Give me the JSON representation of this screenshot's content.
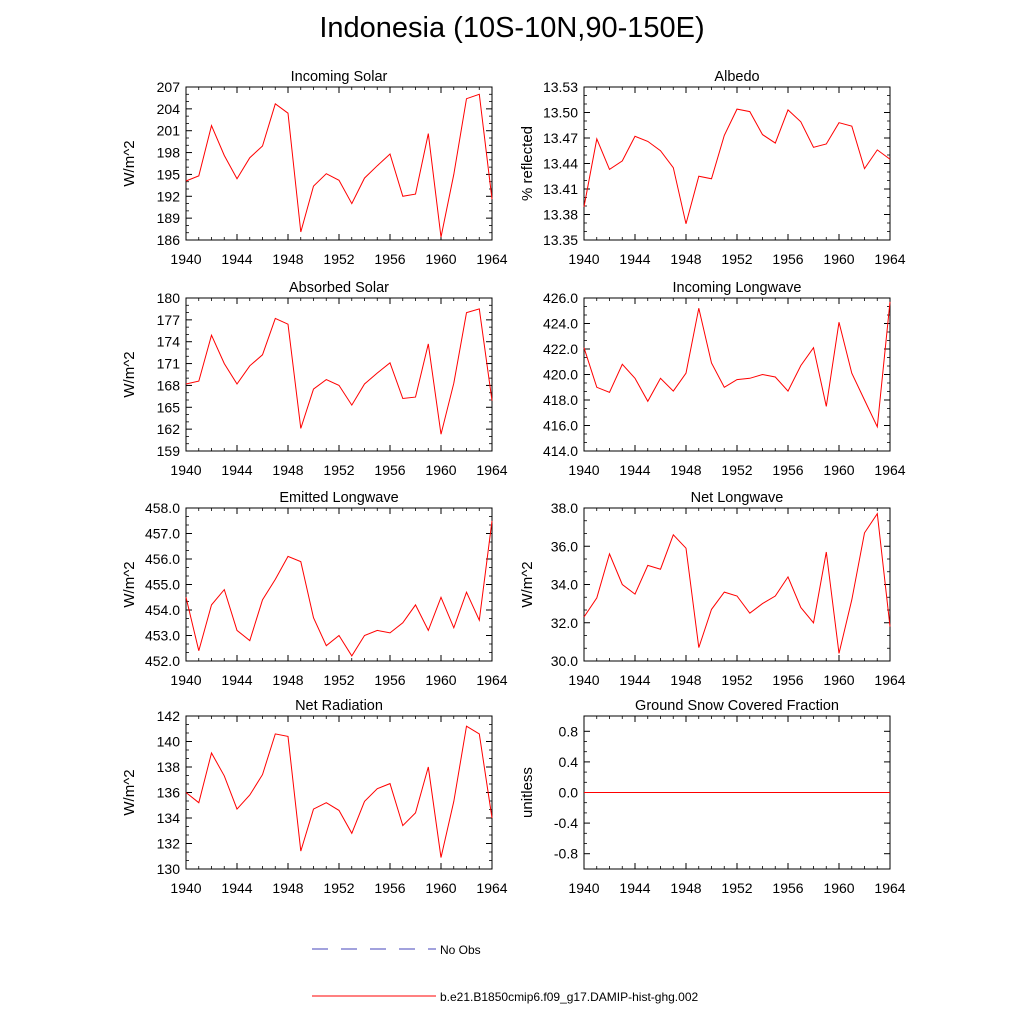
{
  "figure": {
    "title": "Indonesia (10S-10N,90-150E)"
  },
  "legend": [
    {
      "label": "No Obs",
      "color": "#4444bb",
      "style": "dashed"
    },
    {
      "label": "b.e21.B1850cmip6.f09_g17.DAMIP-hist-ghg.002",
      "color": "#ff0000",
      "style": "solid"
    }
  ],
  "chart_data": [
    {
      "type": "line",
      "title": "Incoming Solar",
      "ylabel": "W/m^2",
      "xlim": [
        1940,
        1964
      ],
      "ylim": [
        186,
        207
      ],
      "xticks": [
        1940,
        1944,
        1948,
        1952,
        1956,
        1960,
        1964
      ],
      "xtick_labels": [
        "1940",
        "1944",
        "1948",
        "1952",
        "1956",
        "1960",
        "1964"
      ],
      "yticks": [
        186,
        189,
        192,
        195,
        198,
        201,
        204,
        207
      ],
      "ytick_labels": [
        "186",
        "189",
        "192",
        "195",
        "198",
        "201",
        "204",
        "207"
      ],
      "x": [
        1940,
        1941,
        1942,
        1943,
        1944,
        1945,
        1946,
        1947,
        1948,
        1949,
        1950,
        1951,
        1952,
        1953,
        1954,
        1955,
        1956,
        1957,
        1958,
        1959,
        1960,
        1961,
        1962,
        1963,
        1964
      ],
      "series": [
        {
          "color": "#ff0000",
          "values": [
            194.1,
            194.8,
            201.7,
            197.6,
            194.4,
            197.3,
            198.9,
            204.7,
            203.4,
            187.1,
            193.4,
            195.1,
            194.2,
            191.0,
            194.5,
            196.2,
            197.8,
            192.0,
            192.3,
            200.6,
            186.4,
            195.0,
            205.4,
            206.0,
            191.6
          ]
        }
      ]
    },
    {
      "type": "line",
      "title": "Albedo",
      "ylabel": "% reflected",
      "xlim": [
        1940,
        1964
      ],
      "ylim": [
        13.35,
        13.53
      ],
      "xticks": [
        1940,
        1944,
        1948,
        1952,
        1956,
        1960,
        1964
      ],
      "xtick_labels": [
        "1940",
        "1944",
        "1948",
        "1952",
        "1956",
        "1960",
        "1964"
      ],
      "yticks": [
        13.35,
        13.38,
        13.41,
        13.44,
        13.47,
        13.5,
        13.53
      ],
      "ytick_labels": [
        "13.35",
        "13.38",
        "13.41",
        "13.44",
        "13.47",
        "13.50",
        "13.53"
      ],
      "x": [
        1940,
        1941,
        1942,
        1943,
        1944,
        1945,
        1946,
        1947,
        1948,
        1949,
        1950,
        1951,
        1952,
        1953,
        1954,
        1955,
        1956,
        1957,
        1958,
        1959,
        1960,
        1961,
        1962,
        1963,
        1964
      ],
      "series": [
        {
          "color": "#ff0000",
          "values": [
            13.389,
            13.469,
            13.433,
            13.443,
            13.472,
            13.466,
            13.455,
            13.435,
            13.369,
            13.425,
            13.422,
            13.473,
            13.504,
            13.501,
            13.474,
            13.464,
            13.503,
            13.489,
            13.459,
            13.463,
            13.488,
            13.484,
            13.434,
            13.456,
            13.445
          ]
        }
      ]
    },
    {
      "type": "line",
      "title": "Absorbed Solar",
      "ylabel": "W/m^2",
      "xlim": [
        1940,
        1964
      ],
      "ylim": [
        159,
        180
      ],
      "xticks": [
        1940,
        1944,
        1948,
        1952,
        1956,
        1960,
        1964
      ],
      "xtick_labels": [
        "1940",
        "1944",
        "1948",
        "1952",
        "1956",
        "1960",
        "1964"
      ],
      "yticks": [
        159,
        162,
        165,
        168,
        171,
        174,
        177,
        180
      ],
      "ytick_labels": [
        "159",
        "162",
        "165",
        "168",
        "171",
        "174",
        "177",
        "180"
      ],
      "x": [
        1940,
        1941,
        1942,
        1943,
        1944,
        1945,
        1946,
        1947,
        1948,
        1949,
        1950,
        1951,
        1952,
        1953,
        1954,
        1955,
        1956,
        1957,
        1958,
        1959,
        1960,
        1961,
        1962,
        1963,
        1964
      ],
      "series": [
        {
          "color": "#ff0000",
          "values": [
            168.2,
            168.6,
            174.9,
            171.0,
            168.2,
            170.7,
            172.2,
            177.2,
            176.4,
            162.1,
            167.5,
            168.8,
            168.0,
            165.3,
            168.2,
            169.7,
            171.1,
            166.2,
            166.4,
            173.7,
            161.3,
            168.3,
            178.0,
            178.5,
            165.9
          ]
        }
      ]
    },
    {
      "type": "line",
      "title": "Incoming Longwave",
      "ylabel": "",
      "xlim": [
        1940,
        1964
      ],
      "ylim": [
        414.0,
        426.0
      ],
      "xticks": [
        1940,
        1944,
        1948,
        1952,
        1956,
        1960,
        1964
      ],
      "xtick_labels": [
        "1940",
        "1944",
        "1948",
        "1952",
        "1956",
        "1960",
        "1964"
      ],
      "yticks": [
        414,
        416,
        418,
        420,
        422,
        424,
        426
      ],
      "ytick_labels": [
        "414.0",
        "416.0",
        "418.0",
        "420.0",
        "422.0",
        "424.0",
        "426.0"
      ],
      "x": [
        1940,
        1941,
        1942,
        1943,
        1944,
        1945,
        1946,
        1947,
        1948,
        1949,
        1950,
        1951,
        1952,
        1953,
        1954,
        1955,
        1956,
        1957,
        1958,
        1959,
        1960,
        1961,
        1962,
        1963,
        1964
      ],
      "series": [
        {
          "color": "#ff0000",
          "values": [
            422.1,
            419.0,
            418.6,
            420.8,
            419.7,
            417.9,
            419.7,
            418.7,
            420.1,
            425.2,
            420.9,
            419.0,
            419.6,
            419.7,
            420.0,
            419.8,
            418.7,
            420.7,
            422.1,
            417.5,
            424.1,
            420.1,
            418.0,
            415.9,
            425.7
          ]
        }
      ]
    },
    {
      "type": "line",
      "title": "Emitted Longwave",
      "ylabel": "W/m^2",
      "xlim": [
        1940,
        1964
      ],
      "ylim": [
        452.0,
        458.0
      ],
      "xticks": [
        1940,
        1944,
        1948,
        1952,
        1956,
        1960,
        1964
      ],
      "xtick_labels": [
        "1940",
        "1944",
        "1948",
        "1952",
        "1956",
        "1960",
        "1964"
      ],
      "yticks": [
        452,
        453,
        454,
        455,
        456,
        457,
        458
      ],
      "ytick_labels": [
        "452.0",
        "453.0",
        "454.0",
        "455.0",
        "456.0",
        "457.0",
        "458.0"
      ],
      "x": [
        1940,
        1941,
        1942,
        1943,
        1944,
        1945,
        1946,
        1947,
        1948,
        1949,
        1950,
        1951,
        1952,
        1953,
        1954,
        1955,
        1956,
        1957,
        1958,
        1959,
        1960,
        1961,
        1962,
        1963,
        1964
      ],
      "series": [
        {
          "color": "#ff0000",
          "values": [
            454.5,
            452.4,
            454.2,
            454.8,
            453.2,
            452.8,
            454.4,
            455.2,
            456.1,
            455.9,
            453.7,
            452.6,
            453.0,
            452.2,
            453.0,
            453.2,
            453.1,
            453.5,
            454.2,
            453.2,
            454.5,
            453.3,
            454.7,
            453.6,
            457.5
          ]
        }
      ]
    },
    {
      "type": "line",
      "title": "Net Longwave",
      "ylabel": "W/m^2",
      "xlim": [
        1940,
        1964
      ],
      "ylim": [
        30.0,
        38.0
      ],
      "xticks": [
        1940,
        1944,
        1948,
        1952,
        1956,
        1960,
        1964
      ],
      "xtick_labels": [
        "1940",
        "1944",
        "1948",
        "1952",
        "1956",
        "1960",
        "1964"
      ],
      "yticks": [
        30,
        32,
        34,
        36,
        38
      ],
      "ytick_labels": [
        "30.0",
        "32.0",
        "34.0",
        "36.0",
        "38.0"
      ],
      "x": [
        1940,
        1941,
        1942,
        1943,
        1944,
        1945,
        1946,
        1947,
        1948,
        1949,
        1950,
        1951,
        1952,
        1953,
        1954,
        1955,
        1956,
        1957,
        1958,
        1959,
        1960,
        1961,
        1962,
        1963,
        1964
      ],
      "series": [
        {
          "color": "#ff0000",
          "values": [
            32.3,
            33.3,
            35.6,
            34.0,
            33.5,
            35.0,
            34.8,
            36.6,
            35.9,
            30.7,
            32.7,
            33.6,
            33.4,
            32.5,
            33.0,
            33.4,
            34.4,
            32.8,
            32.0,
            35.7,
            30.4,
            33.2,
            36.7,
            37.7,
            31.8
          ]
        }
      ]
    },
    {
      "type": "line",
      "title": "Net Radiation",
      "ylabel": "W/m^2",
      "xlim": [
        1940,
        1964
      ],
      "ylim": [
        130,
        142
      ],
      "xticks": [
        1940,
        1944,
        1948,
        1952,
        1956,
        1960,
        1964
      ],
      "xtick_labels": [
        "1940",
        "1944",
        "1948",
        "1952",
        "1956",
        "1960",
        "1964"
      ],
      "yticks": [
        130,
        132,
        134,
        136,
        138,
        140,
        142
      ],
      "ytick_labels": [
        "130",
        "132",
        "134",
        "136",
        "138",
        "140",
        "142"
      ],
      "x": [
        1940,
        1941,
        1942,
        1943,
        1944,
        1945,
        1946,
        1947,
        1948,
        1949,
        1950,
        1951,
        1952,
        1953,
        1954,
        1955,
        1956,
        1957,
        1958,
        1959,
        1960,
        1961,
        1962,
        1963,
        1964
      ],
      "series": [
        {
          "color": "#ff0000",
          "values": [
            136.0,
            135.2,
            139.1,
            137.3,
            134.7,
            135.8,
            137.4,
            140.6,
            140.4,
            131.4,
            134.7,
            135.2,
            134.6,
            132.8,
            135.3,
            136.3,
            136.7,
            133.4,
            134.4,
            138.0,
            130.9,
            135.3,
            141.2,
            140.6,
            134.0
          ]
        }
      ]
    },
    {
      "type": "line",
      "title": "Ground Snow Covered Fraction",
      "ylabel": "unitless",
      "xlim": [
        1940,
        1964
      ],
      "ylim": [
        -1.0,
        1.0
      ],
      "xticks": [
        1940,
        1944,
        1948,
        1952,
        1956,
        1960,
        1964
      ],
      "xtick_labels": [
        "1940",
        "1944",
        "1948",
        "1952",
        "1956",
        "1960",
        "1964"
      ],
      "yticks": [
        -0.8,
        -0.4,
        0.0,
        0.4,
        0.8
      ],
      "ytick_labels": [
        "-0.8",
        "-0.4",
        "0.0",
        "0.4",
        "0.8"
      ],
      "x": [
        1940,
        1941,
        1942,
        1943,
        1944,
        1945,
        1946,
        1947,
        1948,
        1949,
        1950,
        1951,
        1952,
        1953,
        1954,
        1955,
        1956,
        1957,
        1958,
        1959,
        1960,
        1961,
        1962,
        1963,
        1964
      ],
      "series": [
        {
          "color": "#ff0000",
          "values": [
            0,
            0,
            0,
            0,
            0,
            0,
            0,
            0,
            0,
            0,
            0,
            0,
            0,
            0,
            0,
            0,
            0,
            0,
            0,
            0,
            0,
            0,
            0,
            0,
            0
          ]
        }
      ]
    }
  ]
}
